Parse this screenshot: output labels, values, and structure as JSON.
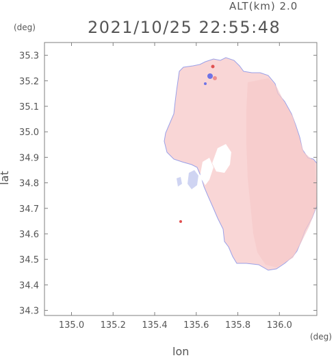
{
  "header": {
    "altitude_text": "ALT(km)  2.0",
    "datetime_text": "2021/10/25 22:55:48"
  },
  "axes": {
    "x_unit": "(deg)",
    "y_unit": "(deg)",
    "x_label": "lon",
    "y_label": "lat"
  },
  "chart_data": {
    "type": "heatmap",
    "description_source": "radar velocity map",
    "xlabel": "lon",
    "ylabel": "lat",
    "xlim": [
      134.87,
      136.18
    ],
    "ylim": [
      34.28,
      35.35
    ],
    "x_ticks": [
      135.0,
      135.2,
      135.4,
      135.6,
      135.8,
      136.0
    ],
    "x_tick_labels": [
      "135.0",
      "135.2",
      "135.4",
      "135.6",
      "135.8",
      "136.0"
    ],
    "y_ticks": [
      34.3,
      34.4,
      34.5,
      34.6,
      34.7,
      34.8,
      34.9,
      35.0,
      35.1,
      35.2,
      35.3
    ],
    "y_tick_labels": [
      "34.3",
      "34.4",
      "34.5",
      "34.6",
      "34.7",
      "34.8",
      "34.9",
      "35.0",
      "35.1",
      "35.2",
      "35.3"
    ],
    "colors": {
      "positive": "#f9d6d6",
      "positive_strong": "#e8a2a2",
      "negative": "#cfd4f2",
      "negative_strong": "#6f73e6",
      "frame": "#7f7f7f"
    }
  }
}
